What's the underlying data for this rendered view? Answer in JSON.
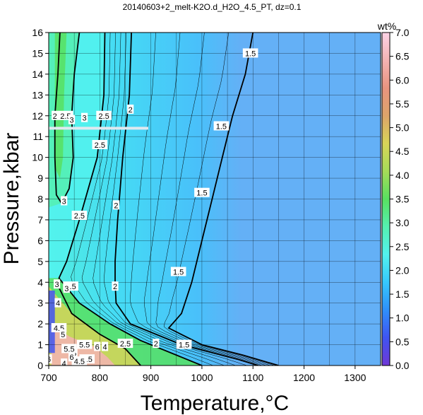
{
  "chart_data": {
    "type": "heatmap",
    "title": "20140603+2_melt-K2O.d_H2O_4.5_PT, dz=0.1",
    "xlabel": "Temperature,°C",
    "ylabel": "Pressure,kbar",
    "xlim": [
      700,
      1350
    ],
    "ylim": [
      0,
      16
    ],
    "x_ticks": [
      "700",
      "800",
      "900",
      "1000",
      "1100",
      "1200",
      "1300"
    ],
    "y_ticks": [
      "0",
      "1",
      "2",
      "3",
      "4",
      "5",
      "6",
      "7",
      "8",
      "9",
      "10",
      "11",
      "12",
      "13",
      "14",
      "15",
      "16"
    ],
    "grid": true,
    "colorbar": {
      "title": "wt%",
      "range": [
        0,
        7
      ],
      "tick_labels": [
        "0.0",
        "0.5",
        "1.0",
        "1.5",
        "2.0",
        "2.5",
        "3.0",
        "3.5",
        "4.0",
        "4.5",
        "5.0",
        "5.5",
        "6.0",
        "6.5",
        "7.0"
      ],
      "colors": [
        "#6f38d6",
        "#3f54f2",
        "#2f90fa",
        "#36c8fc",
        "#52f2ee",
        "#55f0b0",
        "#58e060",
        "#a6dc58",
        "#d8d458",
        "#dda46a",
        "#e8947f",
        "#f4b3b3",
        "#fbd3e6"
      ]
    },
    "contours": [
      {
        "level": "1.5",
        "points": [
          [
            1100,
            16
          ],
          [
            1085,
            14
          ],
          [
            1060,
            12
          ],
          [
            1040,
            10
          ],
          [
            1020,
            8
          ],
          [
            1000,
            6
          ],
          [
            980,
            4
          ],
          [
            960,
            2.5
          ],
          [
            935,
            1.8
          ],
          [
            1000,
            1.0
          ],
          [
            1080,
            0.5
          ],
          [
            1150,
            0
          ]
        ]
      },
      {
        "level": "2",
        "points": [
          [
            862,
            16
          ],
          [
            858,
            13
          ],
          [
            845,
            10
          ],
          [
            835,
            7
          ],
          [
            830,
            5
          ],
          [
            830,
            4
          ],
          [
            832,
            3
          ],
          [
            860,
            2.0
          ],
          [
            960,
            1.0
          ],
          [
            1070,
            0.3
          ],
          [
            1110,
            0
          ]
        ]
      },
      {
        "level": "2.5",
        "points": [
          [
            810,
            16
          ],
          [
            808,
            13
          ],
          [
            795,
            10
          ],
          [
            760,
            7
          ],
          [
            735,
            5
          ],
          [
            720,
            4.2
          ],
          [
            760,
            3
          ],
          [
            820,
            2
          ],
          [
            880,
            1.2
          ],
          [
            960,
            0.4
          ],
          [
            1000,
            0
          ]
        ]
      },
      {
        "level": "3",
        "points": [
          [
            760,
            16
          ],
          [
            750,
            14
          ],
          [
            745,
            12
          ],
          [
            748,
            10
          ],
          [
            740,
            8.5
          ],
          [
            725,
            7.8
          ],
          [
            715,
            8.2
          ],
          [
            712,
            10
          ],
          [
            712,
            12
          ],
          [
            718,
            14
          ],
          [
            722,
            16
          ]
        ]
      },
      {
        "level": "4",
        "points": [
          [
            715,
            4
          ],
          [
            745,
            2.5
          ],
          [
            800,
            1.5
          ],
          [
            850,
            0.8
          ],
          [
            880,
            0
          ]
        ]
      }
    ],
    "contour_labels": [
      {
        "text": "1.5",
        "x": 1095,
        "y": 15.0
      },
      {
        "text": "1.5",
        "x": 1038,
        "y": 11.5
      },
      {
        "text": "1.5",
        "x": 1000,
        "y": 8.3
      },
      {
        "text": "1.5",
        "x": 954,
        "y": 4.5
      },
      {
        "text": "1.5",
        "x": 965,
        "y": 1.0
      },
      {
        "text": "2",
        "x": 860,
        "y": 12.3
      },
      {
        "text": "2",
        "x": 832,
        "y": 7.7
      },
      {
        "text": "2",
        "x": 830,
        "y": 3.8
      },
      {
        "text": "2",
        "x": 910,
        "y": 1.05
      },
      {
        "text": "2",
        "x": 712,
        "y": 12.0
      },
      {
        "text": "2.5",
        "x": 808,
        "y": 12.0
      },
      {
        "text": "2.5",
        "x": 800,
        "y": 10.6
      },
      {
        "text": "2.5",
        "x": 760,
        "y": 7.2
      },
      {
        "text": "2.5",
        "x": 733,
        "y": 12.0
      },
      {
        "text": "2.5",
        "x": 743,
        "y": 3.8
      },
      {
        "text": "2.5",
        "x": 850,
        "y": 1.05
      },
      {
        "text": "3",
        "x": 770,
        "y": 11.9
      },
      {
        "text": "3",
        "x": 745,
        "y": 11.8
      },
      {
        "text": "3",
        "x": 730,
        "y": 7.9
      },
      {
        "text": "3",
        "x": 716,
        "y": 3.9
      },
      {
        "text": "3",
        "x": 735,
        "y": 3.7
      },
      {
        "text": "4",
        "x": 718,
        "y": 3.0
      },
      {
        "text": "4.5",
        "x": 720,
        "y": 1.8
      },
      {
        "text": "5",
        "x": 728,
        "y": 1.5
      },
      {
        "text": "5.5",
        "x": 770,
        "y": 1.0
      },
      {
        "text": "6",
        "x": 795,
        "y": 0.9
      },
      {
        "text": "4",
        "x": 810,
        "y": 0.9
      },
      {
        "text": "3.5",
        "x": 775,
        "y": 0.3
      },
      {
        "text": "4.5",
        "x": 760,
        "y": 0.2
      },
      {
        "text": "5",
        "x": 750,
        "y": 0.6
      },
      {
        "text": "5.5",
        "x": 740,
        "y": 0.8
      },
      {
        "text": "6",
        "x": 745,
        "y": 0.4
      },
      {
        "text": "4",
        "x": 730,
        "y": 0.1
      },
      {
        "text": "6",
        "x": 700,
        "y": 0.3
      }
    ],
    "highlight_line": {
      "y": 11.4,
      "x_start": 700,
      "x_end": 895
    }
  }
}
